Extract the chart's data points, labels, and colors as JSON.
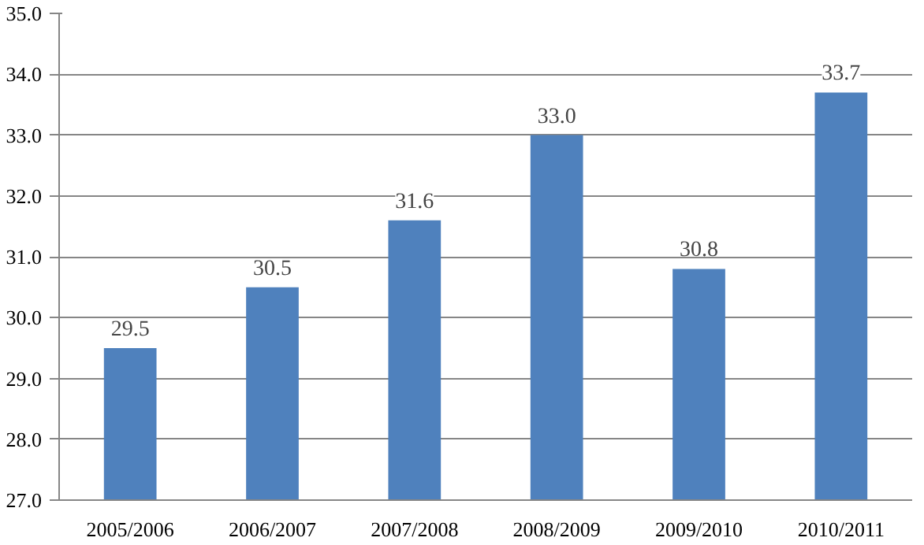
{
  "chart_data": {
    "type": "bar",
    "categories": [
      "2005/2006",
      "2006/2007",
      "2007/2008",
      "2008/2009",
      "2009/2010",
      "2010/2011"
    ],
    "values": [
      29.5,
      30.5,
      31.6,
      33.0,
      30.8,
      33.7
    ],
    "value_labels": [
      "29.5",
      "30.5",
      "31.6",
      "33.0",
      "30.8",
      "33.7"
    ],
    "color": "#4f81bd",
    "ylim": [
      27,
      35
    ],
    "yticks": [
      {
        "value": 27,
        "label": "27.0"
      },
      {
        "value": 28,
        "label": "28.0"
      },
      {
        "value": 29,
        "label": "29.0"
      },
      {
        "value": 30,
        "label": "30.0"
      },
      {
        "value": 31,
        "label": "31.0"
      },
      {
        "value": 32,
        "label": "32.0"
      },
      {
        "value": 33,
        "label": "33.0"
      },
      {
        "value": 34,
        "label": "34.0"
      },
      {
        "value": 35,
        "label": "35.0"
      }
    ],
    "grid": "y"
  }
}
